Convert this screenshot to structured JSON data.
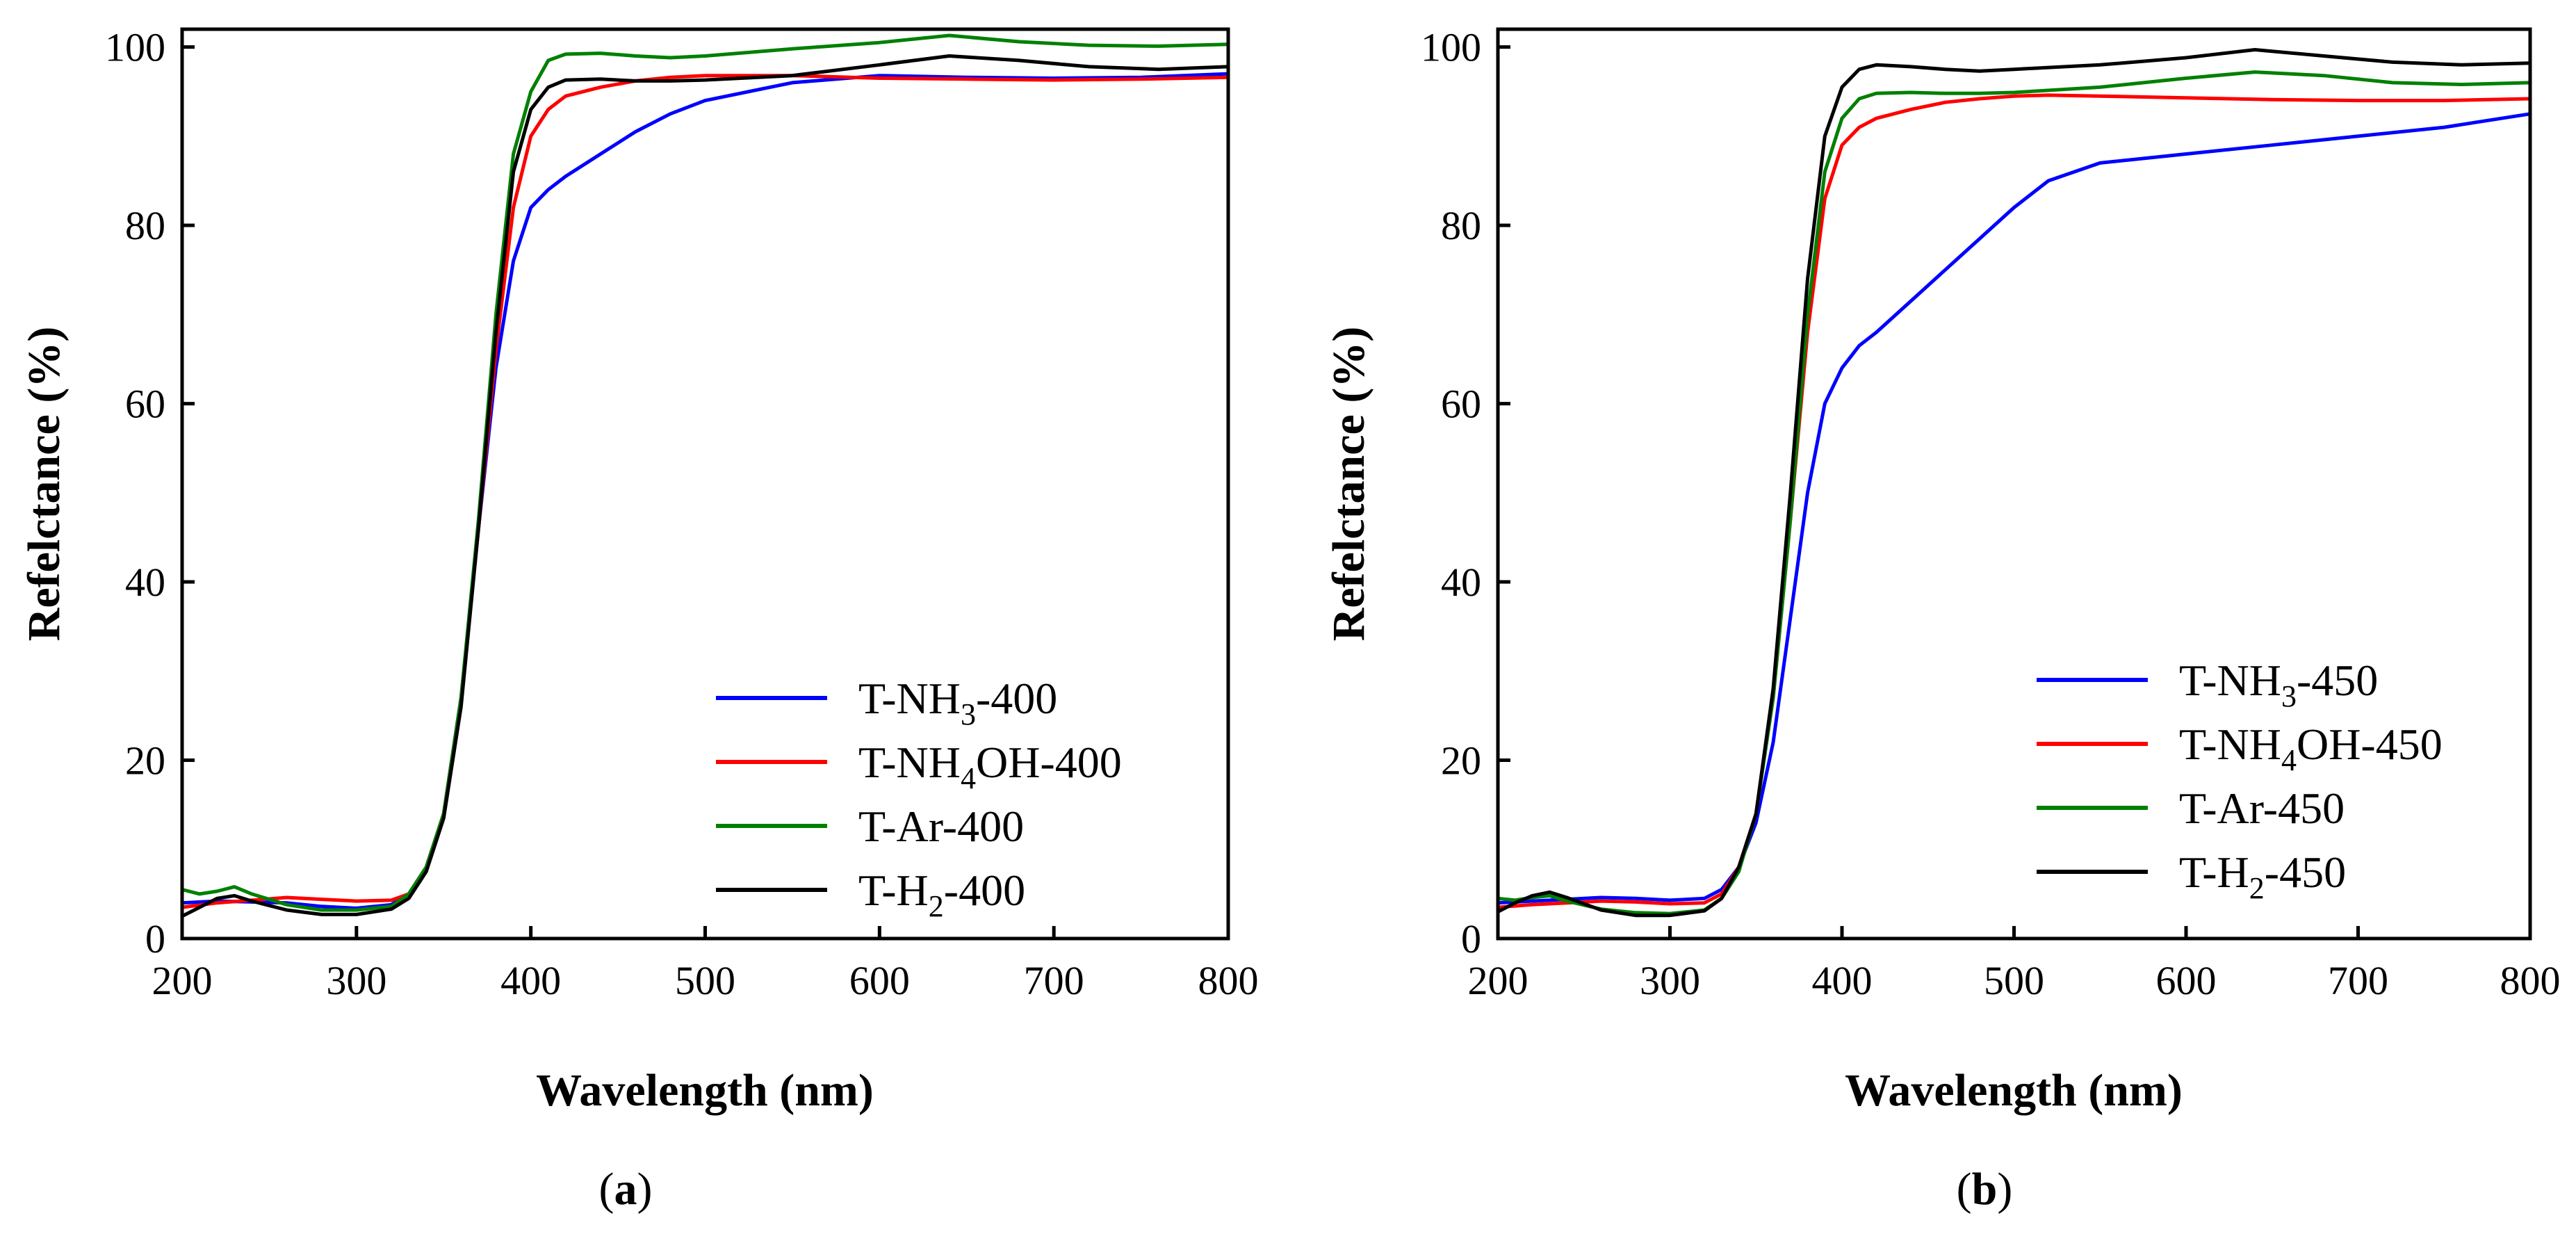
{
  "chart_data": [
    {
      "type": "line",
      "panel_label": {
        "open": "(",
        "letter": "a",
        "close": ")"
      },
      "xlabel": "Wavelength (nm)",
      "ylabel": "Refelctance (%)",
      "xlim": [
        200,
        800
      ],
      "ylim": [
        0,
        102
      ],
      "xticks": [
        "200",
        "300",
        "400",
        "500",
        "600",
        "700",
        "800"
      ],
      "yticks": [
        "0",
        "20",
        "40",
        "60",
        "80",
        "100"
      ],
      "legend_position": "bottom-right",
      "series": [
        {
          "name": "T-NH3-400",
          "label_parts": [
            "T-NH",
            "3",
            "-400"
          ],
          "color": "#0000ff",
          "x": [
            200,
            220,
            240,
            260,
            280,
            300,
            320,
            330,
            340,
            350,
            360,
            370,
            380,
            390,
            400,
            410,
            420,
            440,
            460,
            480,
            500,
            550,
            600,
            650,
            700,
            750,
            800
          ],
          "y": [
            4,
            4.2,
            4.1,
            4,
            3.6,
            3.4,
            3.8,
            5,
            8,
            14,
            27,
            46,
            64,
            76,
            82,
            84,
            85.5,
            88,
            90.5,
            92.5,
            94,
            96,
            96.8,
            96.6,
            96.5,
            96.6,
            97
          ]
        },
        {
          "name": "T-NH4OH-400",
          "label_parts": [
            "T-NH",
            "4",
            "OH-400"
          ],
          "color": "#ff0000",
          "x": [
            200,
            220,
            240,
            260,
            280,
            300,
            320,
            330,
            340,
            350,
            360,
            370,
            380,
            390,
            400,
            410,
            420,
            440,
            460,
            480,
            500,
            550,
            600,
            650,
            700,
            750,
            800
          ],
          "y": [
            3.5,
            4,
            4.3,
            4.6,
            4.4,
            4.2,
            4.3,
            5,
            8,
            14,
            27,
            46,
            66,
            82,
            90,
            93,
            94.5,
            95.5,
            96.2,
            96.6,
            96.8,
            96.8,
            96.5,
            96.4,
            96.3,
            96.4,
            96.6
          ]
        },
        {
          "name": "T-Ar-400",
          "label_parts": [
            "T-Ar-400"
          ],
          "color": "#008000",
          "x": [
            200,
            210,
            220,
            230,
            240,
            260,
            280,
            300,
            320,
            330,
            340,
            350,
            360,
            370,
            380,
            390,
            400,
            410,
            420,
            440,
            460,
            480,
            500,
            550,
            600,
            640,
            680,
            720,
            760,
            800
          ],
          "y": [
            5.5,
            5,
            5.3,
            5.8,
            5,
            3.8,
            3.2,
            3.2,
            3.6,
            5,
            8,
            14,
            27,
            47,
            70,
            88,
            95,
            98.5,
            99.2,
            99.3,
            99,
            98.8,
            99,
            99.8,
            100.5,
            101.3,
            100.6,
            100.2,
            100.1,
            100.3
          ]
        },
        {
          "name": "T-H2-400",
          "label_parts": [
            "T-H",
            "2",
            "-400"
          ],
          "color": "#000000",
          "x": [
            200,
            210,
            220,
            230,
            240,
            260,
            280,
            300,
            320,
            330,
            340,
            350,
            360,
            370,
            380,
            390,
            400,
            410,
            420,
            440,
            460,
            480,
            500,
            550,
            600,
            640,
            680,
            720,
            760,
            800
          ],
          "y": [
            2.5,
            3.5,
            4.5,
            4.8,
            4.2,
            3.2,
            2.7,
            2.7,
            3.3,
            4.5,
            7.5,
            13.5,
            26,
            46,
            68,
            86,
            93,
            95.5,
            96.3,
            96.4,
            96.2,
            96.2,
            96.3,
            96.8,
            98,
            99,
            98.5,
            97.8,
            97.5,
            97.8
          ]
        }
      ]
    },
    {
      "type": "line",
      "panel_label": {
        "open": "(",
        "letter": "b",
        "close": ")"
      },
      "xlabel": "Wavelength (nm)",
      "ylabel": "Refelctance (%)",
      "xlim": [
        200,
        800
      ],
      "ylim": [
        0,
        102
      ],
      "xticks": [
        "200",
        "300",
        "400",
        "500",
        "600",
        "700",
        "800"
      ],
      "yticks": [
        "0",
        "20",
        "40",
        "60",
        "80",
        "100"
      ],
      "legend_position": "bottom-right",
      "series": [
        {
          "name": "T-NH3-450",
          "label_parts": [
            "T-NH",
            "3",
            "-450"
          ],
          "color": "#0000ff",
          "x": [
            200,
            220,
            240,
            260,
            280,
            300,
            320,
            330,
            340,
            350,
            360,
            370,
            380,
            390,
            400,
            410,
            420,
            440,
            460,
            480,
            500,
            520,
            550,
            600,
            650,
            700,
            750,
            800
          ],
          "y": [
            4,
            4.2,
            4.4,
            4.6,
            4.5,
            4.3,
            4.5,
            5.5,
            8,
            13,
            22,
            36,
            50,
            60,
            64,
            66.5,
            68,
            71.5,
            75,
            78.5,
            82,
            85,
            87,
            88,
            89,
            90,
            91,
            92.5
          ]
        },
        {
          "name": "T-NH4OH-450",
          "label_parts": [
            "T-NH",
            "4",
            "OH-450"
          ],
          "color": "#ff0000",
          "x": [
            200,
            220,
            240,
            260,
            280,
            300,
            320,
            330,
            340,
            350,
            360,
            370,
            380,
            390,
            400,
            410,
            420,
            440,
            460,
            480,
            500,
            520,
            550,
            600,
            650,
            700,
            750,
            800
          ],
          "y": [
            3.5,
            3.8,
            4,
            4.2,
            4.1,
            3.9,
            4,
            5,
            8,
            14,
            27,
            47,
            68,
            83,
            89,
            91,
            92,
            93,
            93.8,
            94.2,
            94.5,
            94.6,
            94.5,
            94.3,
            94.1,
            94,
            94,
            94.2
          ]
        },
        {
          "name": "T-Ar-450",
          "label_parts": [
            "T-Ar-450"
          ],
          "color": "#008000",
          "x": [
            200,
            210,
            220,
            230,
            240,
            260,
            280,
            300,
            320,
            330,
            340,
            350,
            360,
            370,
            380,
            390,
            400,
            410,
            420,
            440,
            460,
            480,
            500,
            550,
            600,
            640,
            680,
            720,
            760,
            800
          ],
          "y": [
            4.5,
            4.3,
            4.6,
            4.8,
            4.2,
            3.3,
            2.9,
            2.8,
            3.2,
            4.5,
            7.5,
            14,
            27,
            47,
            70,
            86,
            92,
            94.2,
            94.8,
            94.9,
            94.8,
            94.8,
            94.9,
            95.5,
            96.5,
            97.2,
            96.8,
            96,
            95.8,
            96
          ]
        },
        {
          "name": "T-H2-450",
          "label_parts": [
            "T-H",
            "2",
            "-450"
          ],
          "color": "#000000",
          "x": [
            200,
            210,
            220,
            230,
            240,
            260,
            280,
            300,
            320,
            330,
            340,
            350,
            360,
            370,
            380,
            390,
            400,
            410,
            420,
            440,
            460,
            480,
            500,
            550,
            600,
            640,
            680,
            720,
            760,
            800
          ],
          "y": [
            3,
            4,
            4.8,
            5.2,
            4.6,
            3.2,
            2.6,
            2.6,
            3.1,
            4.5,
            8,
            14,
            28,
            50,
            74,
            90,
            95.5,
            97.5,
            98,
            97.8,
            97.5,
            97.3,
            97.5,
            98,
            98.8,
            99.7,
            99,
            98.3,
            98,
            98.2
          ]
        }
      ]
    }
  ]
}
